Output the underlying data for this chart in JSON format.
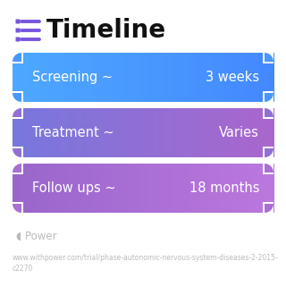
{
  "title": "Timeline",
  "title_fontsize": 20,
  "title_color": "#111111",
  "title_icon_color": "#7755dd",
  "background_color": "#ffffff",
  "rows": [
    {
      "label": "Screening ~",
      "value": "3 weeks",
      "color_left": "#4da8ff",
      "color_right": "#4488ff"
    },
    {
      "label": "Treatment ~",
      "value": "Varies",
      "color_left": "#7777dd",
      "color_right": "#aa66cc"
    },
    {
      "label": "Follow ups ~",
      "value": "18 months",
      "color_left": "#9966cc",
      "color_right": "#bb77dd"
    }
  ],
  "row_text_color": "#ffffff",
  "row_label_fontsize": 10.5,
  "row_value_fontsize": 10.5,
  "footer_text": "www.withpower.com/trial/phase-autonomic-nervous-system-diseases-2-2015-\nc2270",
  "footer_color": "#bbbbbb",
  "footer_fontsize": 5.5,
  "power_text": "Power",
  "power_color": "#bbbbbb",
  "power_text_fontsize": 8.5
}
